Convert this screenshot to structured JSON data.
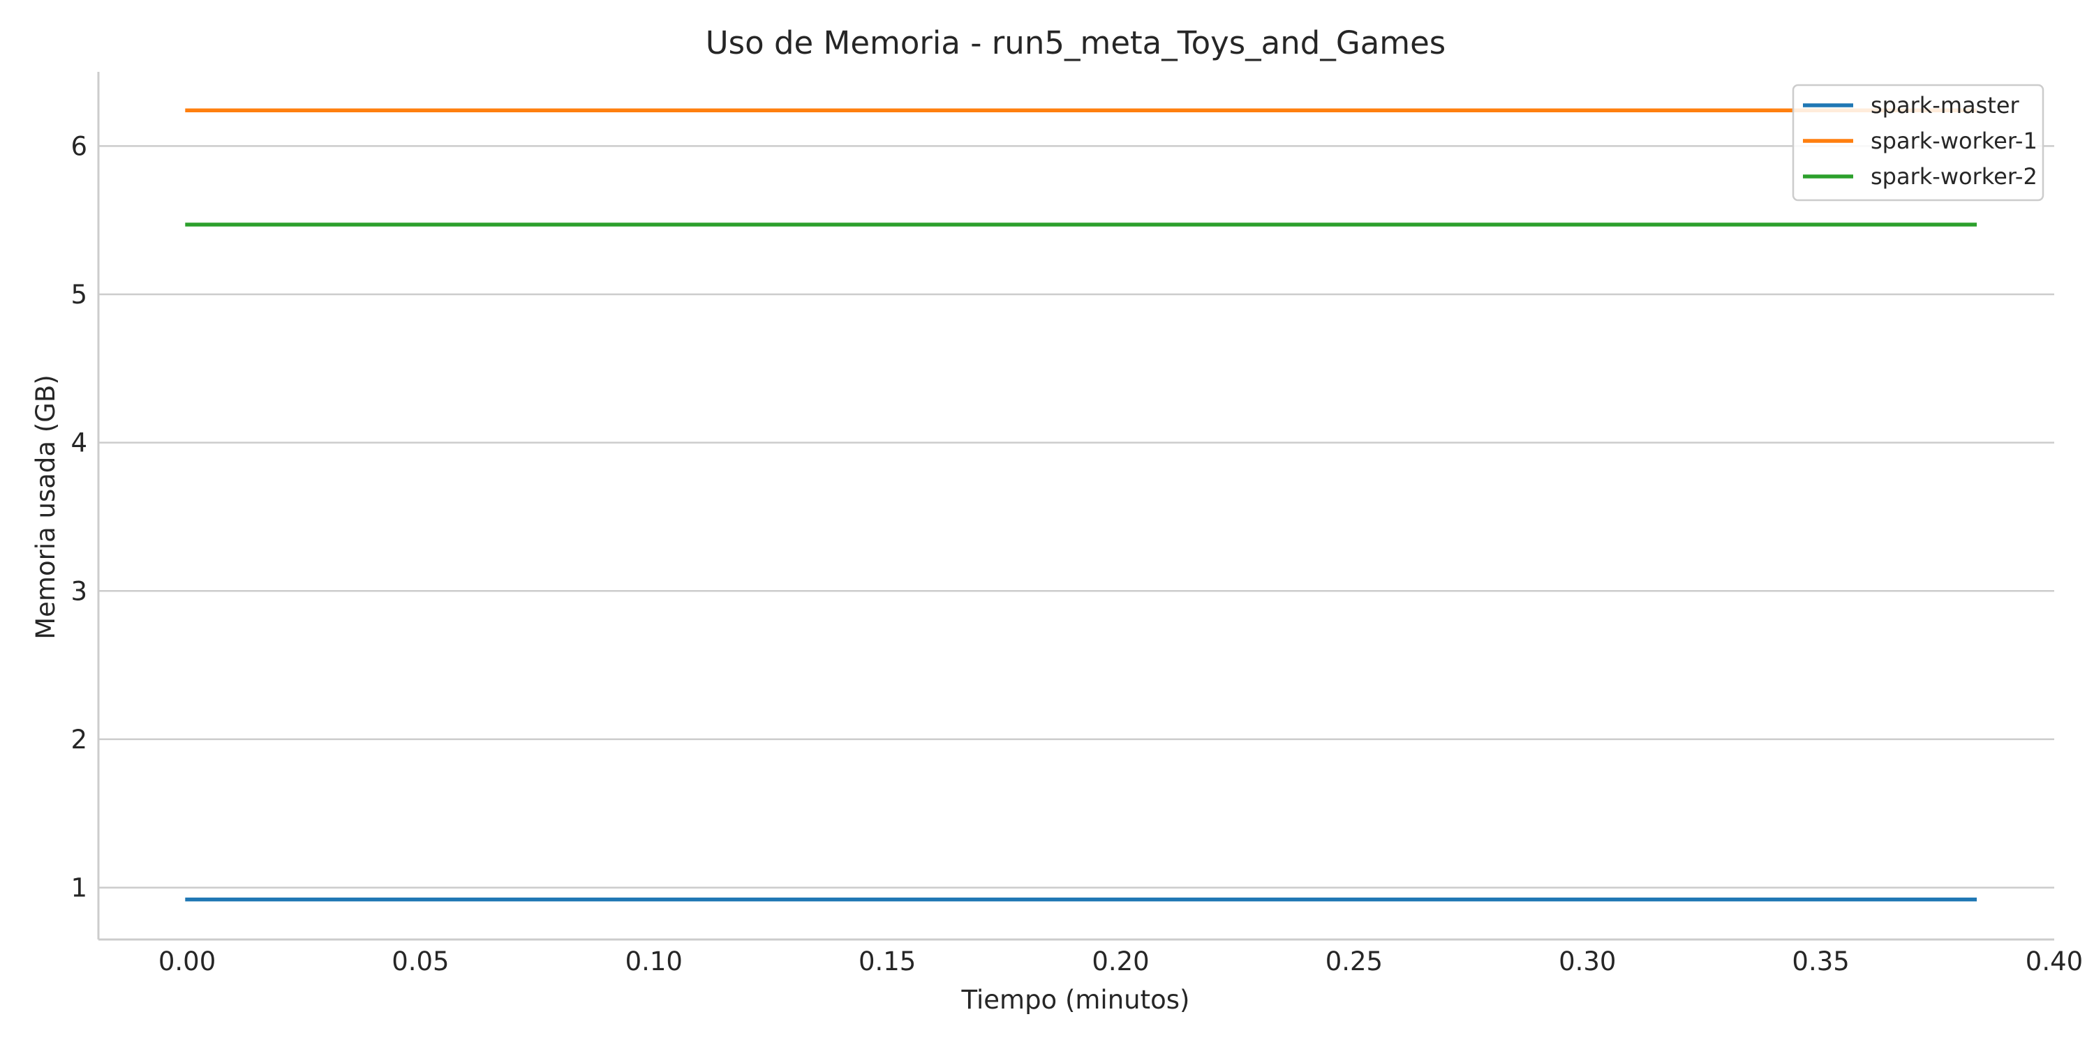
{
  "chart_data": {
    "type": "line",
    "title": "Uso de Memoria - run5_meta_Toys_and_Games",
    "xlabel": "Tiempo (minutos)",
    "ylabel": "Memoria usada (GB)",
    "xlim": [
      -0.019,
      0.4
    ],
    "ylim": [
      0.65,
      6.5
    ],
    "xticks": [
      0.0,
      0.05,
      0.1,
      0.15,
      0.2,
      0.25,
      0.3,
      0.35,
      0.4
    ],
    "xtick_labels": [
      "0.00",
      "0.05",
      "0.10",
      "0.15",
      "0.20",
      "0.25",
      "0.30",
      "0.35",
      "0.40"
    ],
    "yticks": [
      1,
      2,
      3,
      4,
      5,
      6
    ],
    "ytick_labels": [
      "1",
      "2",
      "3",
      "4",
      "5",
      "6"
    ],
    "grid": "horizontal",
    "legend_position": "top-right",
    "series": [
      {
        "name": "spark-master",
        "color": "#1f77b4",
        "x": [
          0.0,
          0.383
        ],
        "y": [
          0.92,
          0.92
        ]
      },
      {
        "name": "spark-worker-1",
        "color": "#ff7f0e",
        "x": [
          0.0,
          0.383
        ],
        "y": [
          6.24,
          6.24
        ]
      },
      {
        "name": "spark-worker-2",
        "color": "#2ca02c",
        "x": [
          0.0,
          0.383
        ],
        "y": [
          5.47,
          5.47
        ]
      }
    ]
  }
}
